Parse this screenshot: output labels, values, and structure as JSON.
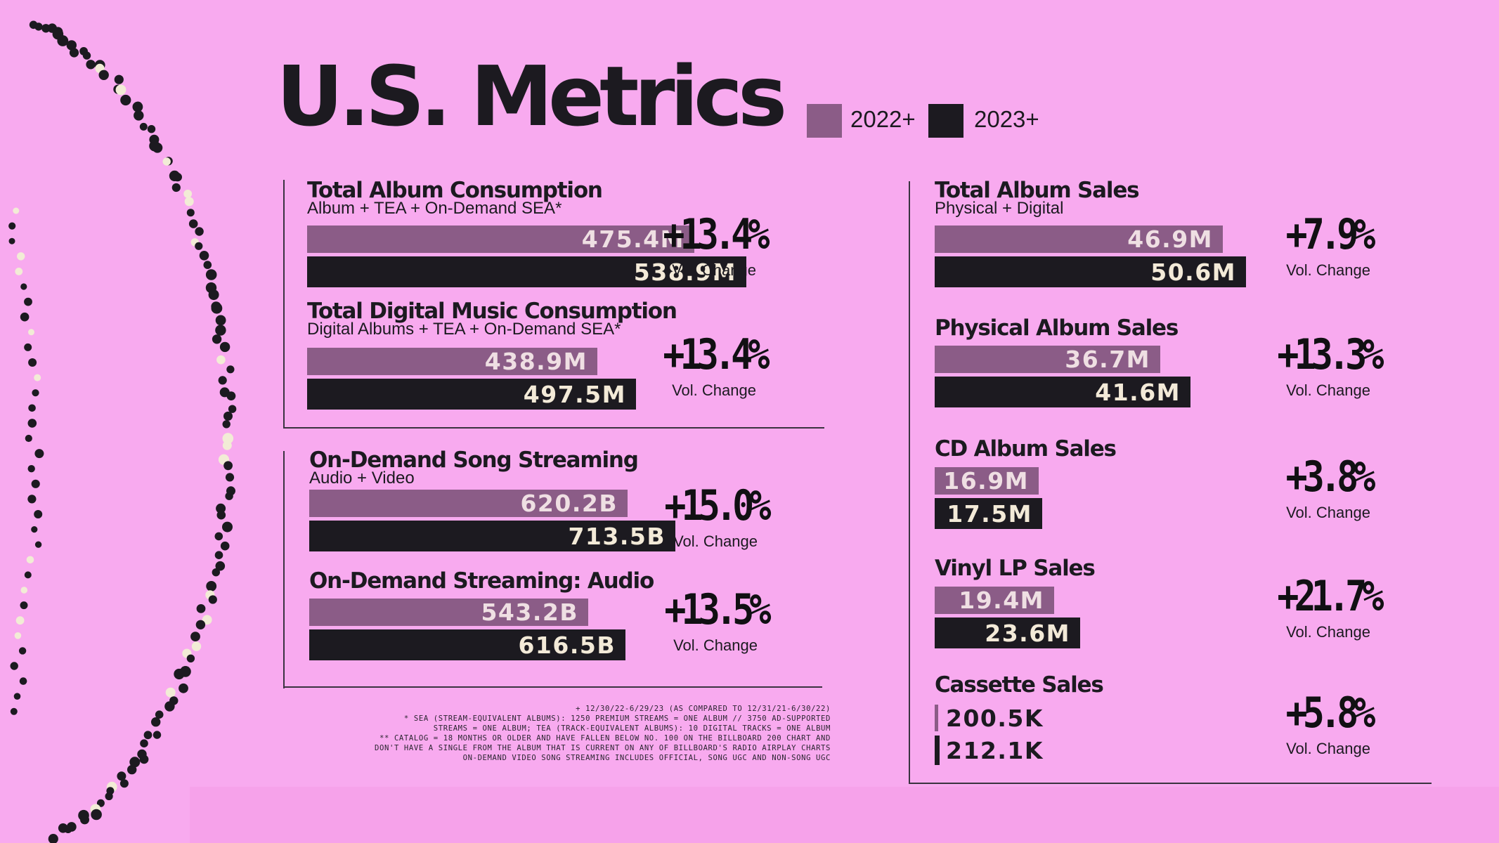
{
  "title": "U.S. Metrics",
  "legend": [
    {
      "label": "2022+",
      "color": "#8b5c87"
    },
    {
      "label": "2023+",
      "color": "#1c1a20"
    }
  ],
  "colors": {
    "background": "#f8aaef",
    "bar_2022": "#8b5c87",
    "bar_2023": "#1c1a20",
    "bar_label": "#f3ead8"
  },
  "change_label": "Vol. Change",
  "chart_data": {
    "type": "bar",
    "orientation": "horizontal",
    "series_names": [
      "2022+",
      "2023+"
    ],
    "metrics": [
      {
        "title": "Total Album Consumption",
        "subtitle": "Album + TEA + On-Demand SEA*",
        "value_2022": 475.4,
        "value_2023": 538.9,
        "label_2022": "475.4M",
        "label_2023": "538.9M",
        "change": "+13.4%"
      },
      {
        "title": "Total Digital Music Consumption",
        "subtitle": "Digital Albums + TEA + On-Demand SEA*",
        "value_2022": 438.9,
        "value_2023": 497.5,
        "label_2022": "438.9M",
        "label_2023": "497.5M",
        "change": "+13.4%"
      },
      {
        "title": "On-Demand Song Streaming",
        "subtitle": "Audio + Video",
        "value_2022": 620.2,
        "value_2023": 713.5,
        "label_2022": "620.2B",
        "label_2023": "713.5B",
        "change": "+15.0%"
      },
      {
        "title": "On-Demand Streaming: Audio",
        "subtitle": "",
        "value_2022": 543.2,
        "value_2023": 616.5,
        "label_2022": "543.2B",
        "label_2023": "616.5B",
        "change": "+13.5%"
      },
      {
        "title": "Total Album Sales",
        "subtitle": "Physical + Digital",
        "value_2022": 46.9,
        "value_2023": 50.6,
        "label_2022": "46.9M",
        "label_2023": "50.6M",
        "change": "+7.9%"
      },
      {
        "title": "Physical Album Sales",
        "subtitle": "",
        "value_2022": 36.7,
        "value_2023": 41.6,
        "label_2022": "36.7M",
        "label_2023": "41.6M",
        "change": "+13.3%"
      },
      {
        "title": "CD Album Sales",
        "subtitle": "",
        "value_2022": 16.9,
        "value_2023": 17.5,
        "label_2022": "16.9M",
        "label_2023": "17.5M",
        "change": "+3.8%"
      },
      {
        "title": "Vinyl LP Sales",
        "subtitle": "",
        "value_2022": 19.4,
        "value_2023": 23.6,
        "label_2022": "19.4M",
        "label_2023": "23.6M",
        "change": "+21.7%"
      },
      {
        "title": "Cassette Sales",
        "subtitle": "",
        "value_2022": 0.2005,
        "value_2023": 0.2121,
        "label_2022": "200.5K",
        "label_2023": "212.1K",
        "change": "+5.8%"
      }
    ]
  },
  "footnotes": [
    "+ 12/30/22-6/29/23 (AS COMPARED TO 12/31/21-6/30/22)",
    "* SEA (STREAM-EQUIVALENT ALBUMS): 1250 PREMIUM STREAMS = ONE ALBUM // 3750 AD-SUPPORTED",
    "STREAMS = ONE ALBUM; TEA (TRACK-EQUIVALENT ALBUMS): 10 DIGITAL TRACKS = ONE ALBUM",
    "** CATALOG = 18 MONTHS OR OLDER AND HAVE FALLEN BELOW NO. 100 ON THE BILLBOARD 200 CHART AND",
    "DON'T HAVE A SINGLE FROM THE ALBUM THAT IS CURRENT ON ANY OF BILLBOARD'S RADIO AIRPLAY CHARTS",
    "ON-DEMAND VIDEO SONG STREAMING INCLUDES OFFICIAL, SONG UGC AND NON-SONG UGC"
  ]
}
